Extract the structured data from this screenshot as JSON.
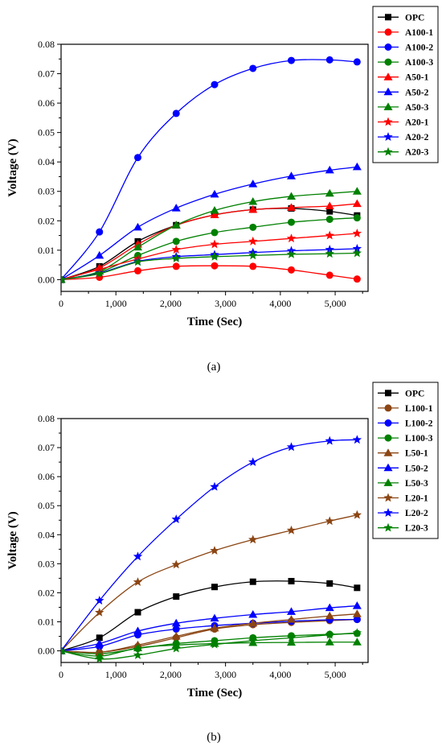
{
  "chart_data": [
    {
      "type": "line",
      "caption": "(a)",
      "xlabel": "Time (Sec)",
      "ylabel": "Voltage (V)",
      "xlim": [
        0,
        5600
      ],
      "ylim": [
        -0.004,
        0.08
      ],
      "xticks": [
        0,
        1000,
        2000,
        3000,
        4000,
        5000
      ],
      "xtick_labels": [
        "0",
        "1,000",
        "2,000",
        "3,000",
        "4,000",
        "5,000"
      ],
      "yticks": [
        0,
        0.01,
        0.02,
        0.03,
        0.04,
        0.05,
        0.06,
        0.07,
        0.08
      ],
      "ytick_labels": [
        "0.00",
        "0.01",
        "0.02",
        "0.03",
        "0.04",
        "0.05",
        "0.06",
        "0.07",
        "0.08"
      ],
      "legend_position": "top-right outside",
      "x": [
        0,
        700,
        1400,
        2100,
        2800,
        3500,
        4200,
        4900,
        5400
      ],
      "series": [
        {
          "name": "OPC",
          "color": "#000000",
          "marker": "square",
          "values": [
            0,
            0.0045,
            0.013,
            0.0185,
            0.022,
            0.0238,
            0.0242,
            0.0232,
            0.0218
          ]
        },
        {
          "name": "A100-1",
          "color": "#ff0000",
          "marker": "circle",
          "values": [
            0,
            0.0008,
            0.003,
            0.0045,
            0.0047,
            0.0045,
            0.0033,
            0.0015,
            0.0002
          ]
        },
        {
          "name": "A100-2",
          "color": "#0000ff",
          "marker": "circle",
          "values": [
            0,
            0.0162,
            0.0415,
            0.0565,
            0.0663,
            0.0718,
            0.0745,
            0.0747,
            0.074
          ]
        },
        {
          "name": "A100-3",
          "color": "#008000",
          "marker": "circle",
          "values": [
            0,
            0.0025,
            0.0082,
            0.013,
            0.016,
            0.0178,
            0.0195,
            0.0205,
            0.021
          ]
        },
        {
          "name": "A50-1",
          "color": "#ff0000",
          "marker": "triangle",
          "values": [
            0,
            0.004,
            0.012,
            0.0185,
            0.022,
            0.0238,
            0.0245,
            0.025,
            0.0258
          ]
        },
        {
          "name": "A50-2",
          "color": "#0000ff",
          "marker": "triangle",
          "values": [
            0,
            0.0082,
            0.0178,
            0.0243,
            0.029,
            0.0325,
            0.0352,
            0.0372,
            0.0383
          ]
        },
        {
          "name": "A50-3",
          "color": "#008000",
          "marker": "triangle",
          "values": [
            0,
            0.0028,
            0.011,
            0.0185,
            0.0235,
            0.0265,
            0.0283,
            0.0293,
            0.03
          ]
        },
        {
          "name": "A20-1",
          "color": "#ff0000",
          "marker": "star",
          "values": [
            0,
            0.0035,
            0.007,
            0.0102,
            0.012,
            0.013,
            0.014,
            0.015,
            0.0157
          ]
        },
        {
          "name": "A20-2",
          "color": "#0000ff",
          "marker": "star",
          "values": [
            0,
            0.0022,
            0.0062,
            0.0078,
            0.0085,
            0.0092,
            0.0098,
            0.0102,
            0.0105
          ]
        },
        {
          "name": "A20-3",
          "color": "#008000",
          "marker": "star",
          "values": [
            0,
            0.002,
            0.006,
            0.0072,
            0.0078,
            0.0082,
            0.0086,
            0.0088,
            0.009
          ]
        }
      ]
    },
    {
      "type": "line",
      "caption": "(b)",
      "xlabel": "Time (Sec)",
      "ylabel": "Voltage (V)",
      "xlim": [
        0,
        5600
      ],
      "ylim": [
        -0.004,
        0.08
      ],
      "xticks": [
        0,
        1000,
        2000,
        3000,
        4000,
        5000
      ],
      "xtick_labels": [
        "0",
        "1,000",
        "2,000",
        "3,000",
        "4,000",
        "5,000"
      ],
      "yticks": [
        0,
        0.01,
        0.02,
        0.03,
        0.04,
        0.05,
        0.06,
        0.07,
        0.08
      ],
      "ytick_labels": [
        "0.00",
        "0.01",
        "0.02",
        "0.03",
        "0.04",
        "0.05",
        "0.06",
        "0.07",
        "0.08"
      ],
      "legend_position": "top-right outside",
      "x": [
        0,
        700,
        1400,
        2100,
        2800,
        3500,
        4200,
        4900,
        5400
      ],
      "series": [
        {
          "name": "OPC",
          "color": "#000000",
          "marker": "square",
          "values": [
            0,
            0.0045,
            0.0133,
            0.0187,
            0.022,
            0.0238,
            0.024,
            0.0232,
            0.0217
          ]
        },
        {
          "name": "L100-1",
          "color": "#8b4513",
          "marker": "circle",
          "values": [
            0,
            -0.0005,
            0.0015,
            0.0045,
            0.0075,
            0.009,
            0.0098,
            0.0104,
            0.0108
          ]
        },
        {
          "name": "L100-2",
          "color": "#0000ff",
          "marker": "circle",
          "values": [
            0,
            0.0015,
            0.0055,
            0.0075,
            0.0087,
            0.0095,
            0.0102,
            0.0107,
            0.0108
          ]
        },
        {
          "name": "L100-3",
          "color": "#008000",
          "marker": "circle",
          "values": [
            0,
            -0.001,
            0.0008,
            0.0025,
            0.0035,
            0.0045,
            0.0052,
            0.0057,
            0.006
          ]
        },
        {
          "name": "L50-1",
          "color": "#8b4513",
          "marker": "triangle",
          "values": [
            0,
            -0.0005,
            0.002,
            0.005,
            0.0078,
            0.0095,
            0.0108,
            0.012,
            0.0127
          ]
        },
        {
          "name": "L50-2",
          "color": "#0000ff",
          "marker": "triangle",
          "values": [
            0,
            0.0025,
            0.0068,
            0.0095,
            0.0112,
            0.0125,
            0.0135,
            0.0148,
            0.0155
          ]
        },
        {
          "name": "L50-3",
          "color": "#008000",
          "marker": "triangle",
          "values": [
            0,
            -0.0018,
            0.001,
            0.002,
            0.0025,
            0.0028,
            0.0029,
            0.003,
            0.003
          ]
        },
        {
          "name": "L20-1",
          "color": "#8b4513",
          "marker": "star",
          "values": [
            0,
            0.0132,
            0.0237,
            0.0297,
            0.0345,
            0.0383,
            0.0415,
            0.0447,
            0.0468
          ]
        },
        {
          "name": "L20-2",
          "color": "#0000ff",
          "marker": "star",
          "values": [
            0,
            0.0173,
            0.0325,
            0.0453,
            0.0565,
            0.065,
            0.0702,
            0.0723,
            0.0727
          ]
        },
        {
          "name": "L20-3",
          "color": "#008000",
          "marker": "star",
          "values": [
            0,
            -0.0028,
            -0.0015,
            0.0008,
            0.0022,
            0.0035,
            0.0045,
            0.0055,
            0.0062
          ]
        }
      ]
    }
  ]
}
